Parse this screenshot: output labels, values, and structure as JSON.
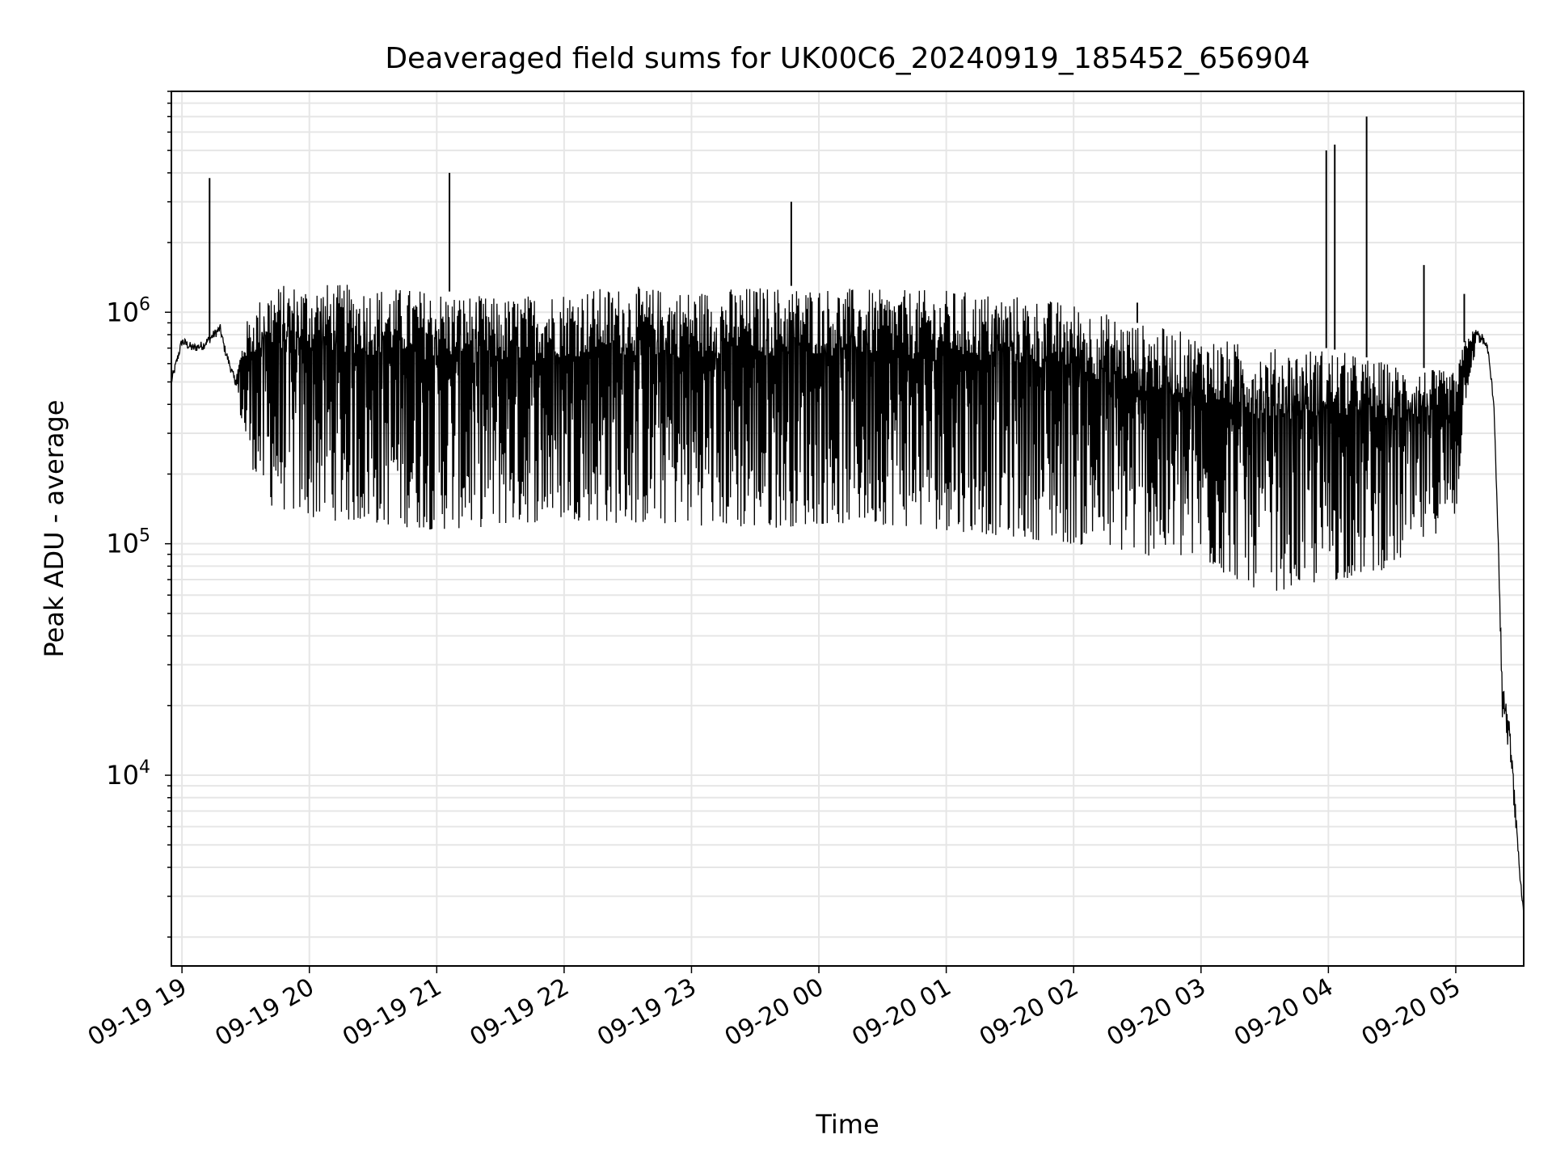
{
  "chart_data": {
    "type": "line",
    "title": "Deaveraged field sums for UK00C6_20240919_185452_656904",
    "xlabel": "Time",
    "ylabel": "Peak ADU - average",
    "y_scale": "log",
    "ylim": [
      1500,
      9000000
    ],
    "xlim": [
      "2024-09-19 18:55",
      "2024-09-20 05:32"
    ],
    "grid": true,
    "line_color": "#000000",
    "grid_color": "#e6e6e6",
    "x_ticks": [
      {
        "t": "2024-09-19 19:00",
        "label": "09-19 19"
      },
      {
        "t": "2024-09-19 20:00",
        "label": "09-19 20"
      },
      {
        "t": "2024-09-19 21:00",
        "label": "09-19 21"
      },
      {
        "t": "2024-09-19 22:00",
        "label": "09-19 22"
      },
      {
        "t": "2024-09-19 23:00",
        "label": "09-19 23"
      },
      {
        "t": "2024-09-20 00:00",
        "label": "09-20 00"
      },
      {
        "t": "2024-09-20 01:00",
        "label": "09-20 01"
      },
      {
        "t": "2024-09-20 02:00",
        "label": "09-20 02"
      },
      {
        "t": "2024-09-20 03:00",
        "label": "09-20 03"
      },
      {
        "t": "2024-09-20 04:00",
        "label": "09-20 04"
      },
      {
        "t": "2024-09-20 05:00",
        "label": "09-20 05"
      }
    ],
    "y_ticks": [
      {
        "value": 10000,
        "base": "10",
        "exp": "4"
      },
      {
        "value": 100000,
        "base": "10",
        "exp": "5"
      },
      {
        "value": 1000000,
        "base": "10",
        "exp": "6"
      }
    ],
    "series": [
      {
        "x": [
          "2024-09-19 18:55",
          "2024-09-19 19:00",
          "2024-09-19 19:05",
          "2024-09-19 19:10",
          "2024-09-19 19:15",
          "2024-09-19 19:18",
          "2024-09-19 19:20",
          "2024-09-19 19:25",
          "2024-09-19 19:30",
          "2024-09-19 19:40",
          "2024-09-19 20:00",
          "2024-09-19 20:30",
          "2024-09-19 21:00",
          "2024-09-19 21:30",
          "2024-09-19 22:00",
          "2024-09-19 22:30",
          "2024-09-19 23:00",
          "2024-09-19 23:30",
          "2024-09-20 00:00",
          "2024-09-20 00:30",
          "2024-09-20 01:00",
          "2024-09-20 01:30",
          "2024-09-20 02:00",
          "2024-09-20 02:30",
          "2024-09-20 03:00",
          "2024-09-20 03:30",
          "2024-09-20 04:00",
          "2024-09-20 04:30",
          "2024-09-20 05:00",
          "2024-09-20 05:05",
          "2024-09-20 05:10",
          "2024-09-20 05:15",
          "2024-09-20 05:18",
          "2024-09-20 05:20",
          "2024-09-20 05:22",
          "2024-09-20 05:25",
          "2024-09-20 05:28",
          "2024-09-20 05:30",
          "2024-09-20 05:32"
        ],
        "upper": [
          500000,
          750000,
          700000,
          720000,
          800000,
          850000,
          700000,
          500000,
          900000,
          1300000,
          1350000,
          1300000,
          1250000,
          1150000,
          1250000,
          1300000,
          1250000,
          1300000,
          1300000,
          1250000,
          1250000,
          1200000,
          1100000,
          900000,
          800000,
          700000,
          700000,
          600000,
          550000,
          800000,
          850000,
          700000,
          400000,
          100000,
          25000,
          18000,
          8000,
          4000,
          2500
        ],
        "lower": [
          500000,
          750000,
          700000,
          720000,
          800000,
          850000,
          700000,
          500000,
          200000,
          100000,
          85000,
          80000,
          75000,
          80000,
          85000,
          80000,
          80000,
          75000,
          80000,
          80000,
          75000,
          70000,
          65000,
          60000,
          55000,
          40000,
          45000,
          55000,
          100000,
          400000,
          700000,
          700000,
          400000,
          100000,
          14000,
          12000,
          6000,
          3500,
          2300
        ]
      }
    ],
    "spikes": [
      {
        "t": "2024-09-19 19:13",
        "value": 3800000
      },
      {
        "t": "2024-09-19 21:06",
        "value": 4000000
      },
      {
        "t": "2024-09-19 23:47",
        "value": 3000000
      },
      {
        "t": "2024-09-20 03:59",
        "value": 5000000
      },
      {
        "t": "2024-09-20 04:03",
        "value": 5300000
      },
      {
        "t": "2024-09-20 04:18",
        "value": 7000000
      },
      {
        "t": "2024-09-20 05:04",
        "value": 1200000
      },
      {
        "t": "2024-09-20 02:30",
        "value": 1100000
      },
      {
        "t": "2024-09-20 04:45",
        "value": 1600000
      }
    ]
  }
}
